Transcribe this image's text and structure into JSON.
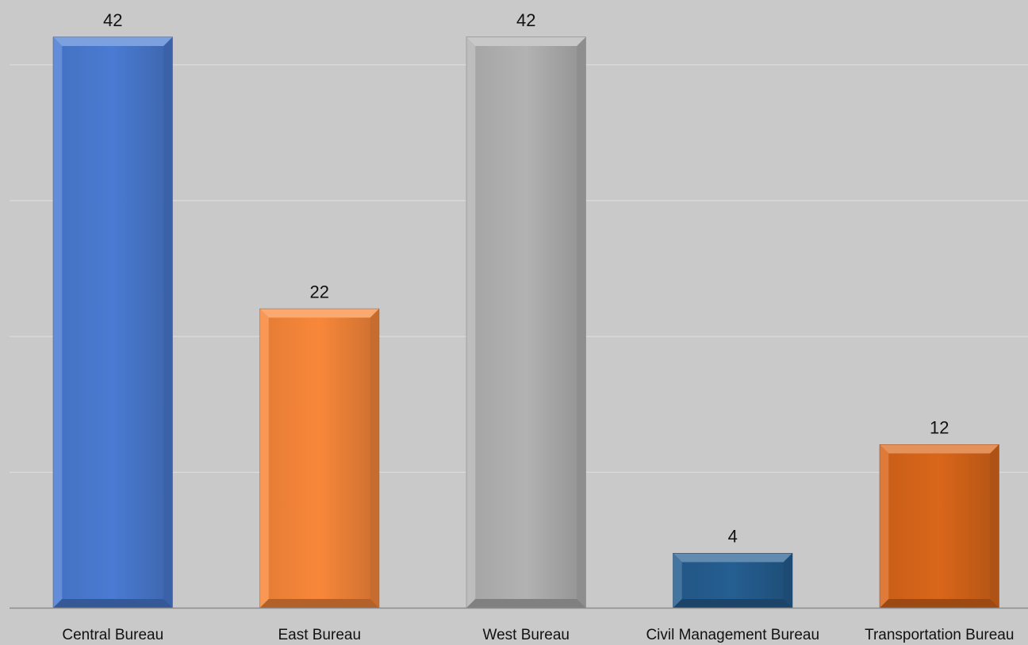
{
  "chart_data": {
    "type": "bar",
    "title": "",
    "xlabel": "",
    "ylabel": "",
    "categories": [
      "Central Bureau",
      "East Bureau",
      "West Bureau",
      "Civil Management Bureau",
      "Transportation Bureau"
    ],
    "values": [
      42,
      22,
      42,
      4,
      12
    ],
    "value_labels": [
      "42",
      "22",
      "42",
      "4",
      "12"
    ],
    "colors": [
      "#4a7bd2",
      "#f8873a",
      "#b2b2b2",
      "#255e91",
      "#d9661a"
    ],
    "ylim": [
      0,
      45
    ],
    "gridlines": [
      10,
      20,
      30,
      40
    ],
    "grid": true,
    "legend": "none",
    "background": "#c9c9c9"
  }
}
